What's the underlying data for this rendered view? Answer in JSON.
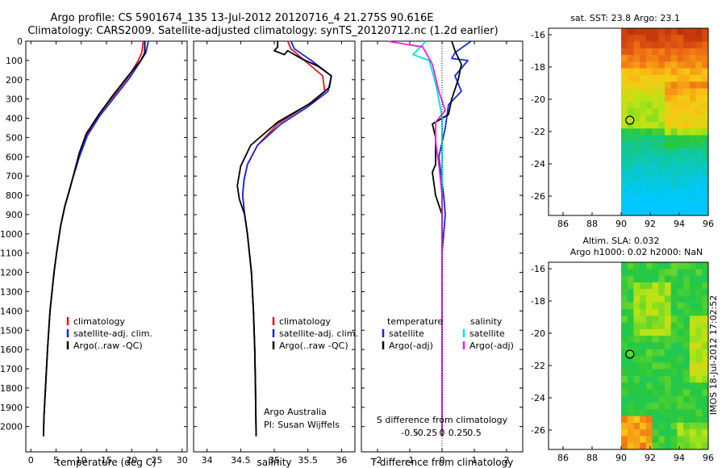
{
  "title_line1": "Argo profile: CS 5901674_135 13-Jul-2012 20120716_4 21.275S 90.616E",
  "title_line2": "Climatology: CARS2009. Satellite-adjusted climatology: synTS_20120712.nc (1.2d earlier)",
  "chart_data": [
    {
      "id": "temperature",
      "type": "line",
      "xlabel": "temperature (deg C)",
      "ylabel": "",
      "xlim": [
        -1,
        31
      ],
      "ylim": [
        2060,
        0
      ],
      "xticks": [
        0,
        5,
        10,
        15,
        20,
        25,
        30
      ],
      "yticks": [
        0,
        100,
        200,
        300,
        400,
        500,
        600,
        700,
        800,
        900,
        1000,
        1100,
        1200,
        1300,
        1400,
        1500,
        1600,
        1700,
        1800,
        1900,
        2000
      ],
      "legend": [
        "climatology",
        "satellite-adj. clim.",
        "Argo(..raw -QC)"
      ],
      "series": [
        {
          "name": "climatology",
          "color": "#e8141c",
          "points": [
            [
              22.3,
              0
            ],
            [
              22.0,
              60
            ],
            [
              21.3,
              100
            ],
            [
              19.5,
              180
            ],
            [
              16.5,
              280
            ],
            [
              13.5,
              380
            ],
            [
              11.3,
              480
            ],
            [
              9.6,
              600
            ],
            [
              8.2,
              720
            ],
            [
              6.8,
              850
            ],
            [
              5.9,
              960
            ],
            [
              5.1,
              1100
            ],
            [
              4.6,
              1200
            ],
            [
              3.8,
              1400
            ],
            [
              3.3,
              1600
            ],
            [
              2.9,
              1800
            ],
            [
              2.6,
              1950
            ],
            [
              2.5,
              2050
            ]
          ]
        },
        {
          "name": "satellite-adj. clim.",
          "color": "#1428e0",
          "points": [
            [
              23.3,
              0
            ],
            [
              22.8,
              60
            ],
            [
              21.6,
              110
            ],
            [
              19.6,
              190
            ],
            [
              16.6,
              290
            ],
            [
              13.6,
              390
            ],
            [
              11.2,
              490
            ],
            [
              9.5,
              610
            ],
            [
              8.1,
              730
            ],
            [
              6.8,
              850
            ],
            [
              5.9,
              960
            ],
            [
              5.1,
              1100
            ],
            [
              4.6,
              1200
            ],
            [
              3.8,
              1400
            ],
            [
              3.3,
              1600
            ],
            [
              2.9,
              1800
            ],
            [
              2.6,
              1950
            ],
            [
              2.5,
              2050
            ]
          ]
        },
        {
          "name": "Argo(..raw -QC)",
          "color": "#000000",
          "points": [
            [
              22.6,
              0
            ],
            [
              22.6,
              60
            ],
            [
              21.8,
              100
            ],
            [
              19.3,
              180
            ],
            [
              16.3,
              280
            ],
            [
              13.5,
              380
            ],
            [
              11.0,
              480
            ],
            [
              9.6,
              580
            ],
            [
              8.8,
              660
            ],
            [
              7.6,
              780
            ],
            [
              6.7,
              860
            ],
            [
              5.9,
              960
            ],
            [
              5.1,
              1100
            ],
            [
              4.6,
              1200
            ],
            [
              3.8,
              1400
            ],
            [
              3.3,
              1600
            ],
            [
              2.9,
              1800
            ],
            [
              2.6,
              1950
            ],
            [
              2.5,
              2050
            ]
          ]
        }
      ]
    },
    {
      "id": "salinity",
      "type": "line",
      "xlabel": "salinity",
      "ylabel": "",
      "xlim": [
        33.8,
        36.2
      ],
      "ylim": [
        2060,
        0
      ],
      "xticks": [
        34,
        34.5,
        35,
        35.5,
        36
      ],
      "legend": [
        "climatology",
        "satellite-adj. clim.",
        "Argo(..raw -QC)"
      ],
      "annotations": [
        "Argo Australia",
        "PI: Susan Wijffels"
      ],
      "series": [
        {
          "name": "climatology",
          "color": "#e8141c",
          "points": [
            [
              35.2,
              0
            ],
            [
              35.25,
              40
            ],
            [
              35.45,
              100
            ],
            [
              35.72,
              180
            ],
            [
              35.75,
              260
            ],
            [
              35.5,
              330
            ],
            [
              35.05,
              430
            ],
            [
              34.75,
              540
            ],
            [
              34.6,
              640
            ],
            [
              34.55,
              720
            ],
            [
              34.53,
              800
            ],
            [
              34.56,
              900
            ],
            [
              34.6,
              1000
            ],
            [
              34.63,
              1100
            ],
            [
              34.66,
              1200
            ],
            [
              34.69,
              1400
            ],
            [
              34.71,
              1600
            ],
            [
              34.72,
              1800
            ],
            [
              34.73,
              2050
            ]
          ]
        },
        {
          "name": "satellite-adj. clim.",
          "color": "#1428e0",
          "points": [
            [
              35.25,
              0
            ],
            [
              35.3,
              40
            ],
            [
              35.55,
              100
            ],
            [
              35.85,
              180
            ],
            [
              35.8,
              260
            ],
            [
              35.5,
              340
            ],
            [
              35.1,
              430
            ],
            [
              34.75,
              540
            ],
            [
              34.6,
              640
            ],
            [
              34.55,
              720
            ],
            [
              34.53,
              800
            ],
            [
              34.56,
              900
            ],
            [
              34.6,
              1000
            ],
            [
              34.63,
              1100
            ],
            [
              34.66,
              1200
            ],
            [
              34.69,
              1400
            ],
            [
              34.71,
              1600
            ],
            [
              34.72,
              1800
            ],
            [
              34.73,
              2050
            ]
          ]
        },
        {
          "name": "Argo(..raw -QC)",
          "color": "#000000",
          "points": [
            [
              35.05,
              0
            ],
            [
              35.05,
              30
            ],
            [
              35.0,
              50
            ],
            [
              35.15,
              70
            ],
            [
              35.2,
              50
            ],
            [
              35.4,
              90
            ],
            [
              35.65,
              130
            ],
            [
              35.85,
              180
            ],
            [
              35.82,
              240
            ],
            [
              35.55,
              320
            ],
            [
              35.05,
              420
            ],
            [
              34.65,
              540
            ],
            [
              34.5,
              650
            ],
            [
              34.45,
              750
            ],
            [
              34.48,
              820
            ],
            [
              34.56,
              900
            ],
            [
              34.6,
              1000
            ],
            [
              34.63,
              1100
            ],
            [
              34.66,
              1200
            ],
            [
              34.69,
              1400
            ],
            [
              34.71,
              1600
            ],
            [
              34.72,
              1800
            ],
            [
              34.73,
              2050
            ]
          ]
        }
      ]
    },
    {
      "id": "difference",
      "type": "line",
      "xlabel": "T difference from climatology",
      "xlabel2": "S difference from climatology",
      "xlim": [
        -2.5,
        2.5
      ],
      "ylim": [
        2060,
        0
      ],
      "xticks": [
        -2,
        -1,
        0,
        1,
        2
      ],
      "xticks2": [
        "-0.5",
        "-0.25",
        "0",
        "0.25",
        "0.5"
      ],
      "legend_t_title": "temperature",
      "legend_s_title": "salinity",
      "legend": [
        "satellite",
        "Argo(-adj)",
        "satellite",
        "Argo(-adj)"
      ],
      "series": [
        {
          "name": "T satellite",
          "color": "#1428e0",
          "points": [
            [
              0.9,
              0
            ],
            [
              0.4,
              60
            ],
            [
              0.3,
              90
            ],
            [
              0.8,
              100
            ],
            [
              0.4,
              180
            ],
            [
              0.6,
              260
            ],
            [
              0.2,
              330
            ],
            [
              0.1,
              450
            ],
            [
              -0.1,
              600
            ],
            [
              0.05,
              800
            ],
            [
              0.1,
              900
            ],
            [
              0,
              1100
            ],
            [
              0,
              1500
            ],
            [
              0,
              2050
            ]
          ]
        },
        {
          "name": "T Argo(-adj)",
          "color": "#000000",
          "points": [
            [
              0.3,
              0
            ],
            [
              0.4,
              50
            ],
            [
              0.6,
              120
            ],
            [
              0.5,
              200
            ],
            [
              0.3,
              300
            ],
            [
              0.2,
              380
            ],
            [
              -0.3,
              430
            ],
            [
              -0.2,
              500
            ],
            [
              -0.2,
              640
            ],
            [
              -0.3,
              680
            ],
            [
              -0.2,
              800
            ],
            [
              0,
              900
            ],
            [
              0,
              1100
            ],
            [
              0,
              1500
            ],
            [
              0,
              2050
            ]
          ]
        },
        {
          "name": "S satellite",
          "color": "#00e0e8",
          "points": [
            [
              -0.5,
              0
            ],
            [
              -0.9,
              70
            ],
            [
              -0.4,
              100
            ],
            [
              -0.2,
              220
            ],
            [
              -0.1,
              300
            ],
            [
              0,
              400
            ],
            [
              0,
              600
            ],
            [
              0,
              800
            ],
            [
              0,
              1000
            ],
            [
              0,
              1500
            ],
            [
              0,
              2050
            ]
          ]
        },
        {
          "name": "S Argo(-adj)",
          "color": "#e820e0",
          "points": [
            [
              -1.7,
              0
            ],
            [
              -0.6,
              30
            ],
            [
              -0.3,
              120
            ],
            [
              -0.1,
              260
            ],
            [
              0.1,
              360
            ],
            [
              -0.2,
              420
            ],
            [
              -0.2,
              520
            ],
            [
              -0.1,
              640
            ],
            [
              0,
              800
            ],
            [
              0,
              1000
            ],
            [
              0,
              1500
            ],
            [
              0,
              2050
            ]
          ]
        }
      ]
    },
    {
      "id": "sst_map",
      "type": "heatmap",
      "title": "sat. SST: 23.8 Argo: 23.1",
      "xlim": [
        85,
        96
      ],
      "ylim": [
        -27.2,
        -15.6
      ],
      "xticks": [
        86,
        88,
        90,
        92,
        94,
        96
      ],
      "yticks": [
        -16,
        -18,
        -20,
        -22,
        -24,
        -26
      ],
      "argo_position": [
        90.6,
        -21.3
      ]
    },
    {
      "id": "sla_map",
      "type": "heatmap",
      "title_line1": "Altim. SLA: 0.032",
      "title_line2": "Argo h1000: 0.02 h2000: NaN",
      "xlim": [
        85,
        96
      ],
      "ylim": [
        -27.2,
        -15.6
      ],
      "xticks": [
        86,
        88,
        90,
        92,
        94,
        96
      ],
      "yticks": [
        -16,
        -18,
        -20,
        -22,
        -24,
        -26
      ],
      "argo_position": [
        90.6,
        -21.3
      ]
    }
  ],
  "stamp": "IMOS 18-Jul-2012 17:02:52"
}
